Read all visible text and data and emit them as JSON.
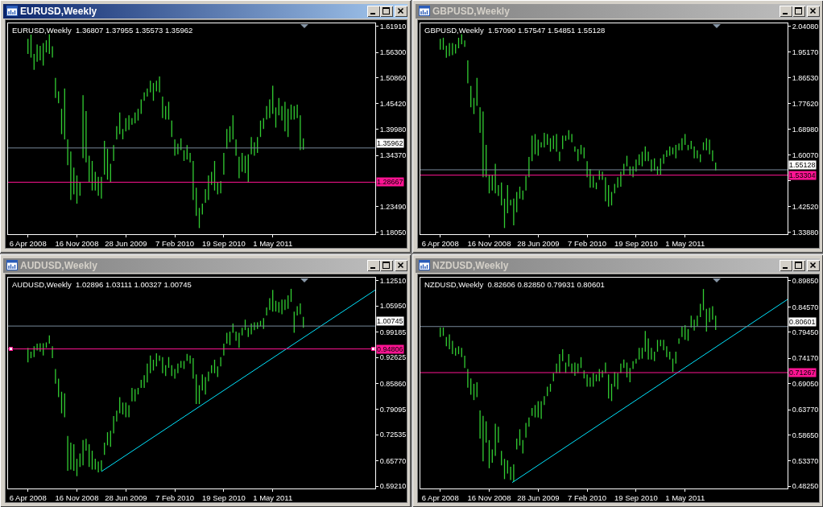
{
  "chart_data": [
    {
      "type": "bar",
      "title": "EURUSD,Weekly",
      "annotations": [
        "EURUSD,Weekly  1.36807 1.37955 1.35573 1.35962"
      ],
      "x": [
        "2008-04-06",
        "2008-04-20",
        "2008-05-04",
        "2008-05-18",
        "2008-06-01",
        "2008-06-15",
        "2008-06-29",
        "2008-07-13",
        "2008-07-27",
        "2008-08-10",
        "2008-08-24",
        "2008-09-07",
        "2008-09-21",
        "2008-10-05",
        "2008-10-19",
        "2008-11-02",
        "2008-11-16",
        "2008-11-30",
        "2008-12-14",
        "2008-12-28",
        "2009-01-11",
        "2009-01-25",
        "2009-02-08",
        "2009-02-22",
        "2009-03-08",
        "2009-03-22",
        "2009-04-05",
        "2009-04-19",
        "2009-05-03",
        "2009-05-17",
        "2009-05-31",
        "2009-06-14",
        "2009-06-28",
        "2009-07-12",
        "2009-07-26",
        "2009-08-09",
        "2009-08-23",
        "2009-09-06",
        "2009-09-20",
        "2009-10-04",
        "2009-10-18",
        "2009-11-01",
        "2009-11-15",
        "2009-11-29",
        "2009-12-13",
        "2009-12-27",
        "2010-01-10",
        "2010-01-24",
        "2010-02-07",
        "2010-02-21",
        "2010-03-07",
        "2010-03-21",
        "2010-04-04",
        "2010-04-18",
        "2010-05-02",
        "2010-05-16",
        "2010-05-30",
        "2010-06-13",
        "2010-06-27",
        "2010-07-11",
        "2010-07-25",
        "2010-08-08",
        "2010-08-22",
        "2010-09-05",
        "2010-09-19",
        "2010-10-03",
        "2010-10-17",
        "2010-10-31",
        "2010-11-14",
        "2010-11-28",
        "2010-12-12",
        "2010-12-26",
        "2011-01-09",
        "2011-01-23",
        "2011-02-06",
        "2011-02-20",
        "2011-03-06",
        "2011-03-20",
        "2011-04-03",
        "2011-04-17",
        "2011-05-01",
        "2011-05-15",
        "2011-05-29",
        "2011-06-12",
        "2011-06-26",
        "2011-07-10",
        "2011-07-24",
        "2011-08-07",
        "2011-08-21",
        "2011-09-04",
        "2011-09-18"
      ],
      "series": [
        {
          "color": "#32cd32",
          "base": [
            1.56,
            1.552,
            1.526,
            1.543,
            1.546,
            1.535,
            1.563,
            1.56,
            1.552,
            1.466,
            1.455,
            1.389,
            1.378,
            1.323,
            1.249,
            1.261,
            1.241,
            1.258,
            1.338,
            1.329,
            1.286,
            1.269,
            1.269,
            1.258,
            1.252,
            1.303,
            1.292,
            1.286,
            1.332,
            1.378,
            1.389,
            1.378,
            1.395,
            1.398,
            1.409,
            1.412,
            1.418,
            1.432,
            1.46,
            1.469,
            1.478,
            1.46,
            1.48,
            1.478,
            1.423,
            1.42,
            1.42,
            1.383,
            1.343,
            1.346,
            1.355,
            1.332,
            1.335,
            1.329,
            1.249,
            1.215,
            1.189,
            1.218,
            1.243,
            1.249,
            1.281,
            1.269,
            1.261,
            1.263,
            1.303,
            1.358,
            1.372,
            1.378,
            1.343,
            1.295,
            1.309,
            1.306,
            1.286,
            1.346,
            1.343,
            1.349,
            1.383,
            1.4,
            1.42,
            1.423,
            1.432,
            1.403,
            1.429,
            1.418,
            1.395,
            1.383,
            1.42,
            1.42,
            1.423,
            1.355,
            1.356
          ],
          "values": [
            0.032,
            0.049,
            0.034,
            0.037,
            0.031,
            0.048,
            0.026,
            0.042,
            0.024,
            0.043,
            0.025,
            0.054,
            0.108,
            0.055,
            0.103,
            0.057,
            0.06,
            0.028,
            0.134,
            0.109,
            0.057,
            0.063,
            0.04,
            0.04,
            0.046,
            0.072,
            0.066,
            0.04,
            0.034,
            0.028,
            0.046,
            0.022,
            0.028,
            0.031,
            0.014,
            0.023,
            0.025,
            0.031,
            0.018,
            0.017,
            0.025,
            0.038,
            0.023,
            0.034,
            0.046,
            0.029,
            0.038,
            0.035,
            0.035,
            0.023,
            0.025,
            0.023,
            0.031,
            0.02,
            0.083,
            0.06,
            0.043,
            0.023,
            0.029,
            0.052,
            0.028,
            0.063,
            0.025,
            0.026,
            0.046,
            0.042,
            0.034,
            0.051,
            0.035,
            0.046,
            0.04,
            0.037,
            0.06,
            0.037,
            0.029,
            0.034,
            0.035,
            0.023,
            0.029,
            0.04,
            0.06,
            0.043,
            0.037,
            0.031,
            0.063,
            0.06,
            0.032,
            0.029,
            0.029,
            0.074,
            0.024
          ]
        }
      ],
      "xlim": [
        "2008-01-06",
        "2012-08-12"
      ],
      "xticks": [
        {
          "value": "2008-04-06",
          "label": "6 Apr 2008"
        },
        {
          "value": "2008-11-16",
          "label": "16 Nov 2008"
        },
        {
          "value": "2009-06-28",
          "label": "28 Jun 2009"
        },
        {
          "value": "2010-02-07",
          "label": "7 Feb 2010"
        },
        {
          "value": "2010-09-19",
          "label": "19 Sep 2010"
        },
        {
          "value": "2011-05-01",
          "label": "1 May 2011"
        }
      ],
      "ylim": [
        1.176,
        1.625
      ],
      "yticks": [
        {
          "value": 1.6191,
          "label": "1.61910"
        },
        {
          "value": 1.563,
          "label": "1.56300"
        },
        {
          "value": 1.5086,
          "label": "1.50860"
        },
        {
          "value": 1.4542,
          "label": "1.45420"
        },
        {
          "value": 1.3998,
          "label": "1.39980"
        },
        {
          "value": 1.3437,
          "label": "1.34370"
        },
        {
          "value": 1.2349,
          "label": "1.23490"
        },
        {
          "value": 1.1805,
          "label": "1.18050"
        }
      ],
      "ref_lines": [
        {
          "axis": "y",
          "value": 1.35962,
          "label": "1.35962",
          "color": "#778899"
        },
        {
          "axis": "y",
          "value": 1.28667,
          "label": "1.28667",
          "color": "#ff1493"
        }
      ]
    },
    {
      "type": "bar",
      "title": "GBPUSD,Weekly",
      "annotations": [
        "GBPUSD,Weekly  1.57090 1.57547 1.54851 1.55128"
      ],
      "x": [
        "2008-04-06",
        "2008-04-20",
        "2008-05-04",
        "2008-05-18",
        "2008-06-01",
        "2008-06-15",
        "2008-06-29",
        "2008-07-13",
        "2008-07-27",
        "2008-08-10",
        "2008-08-24",
        "2008-09-07",
        "2008-09-21",
        "2008-10-05",
        "2008-10-19",
        "2008-11-02",
        "2008-11-16",
        "2008-11-30",
        "2008-12-14",
        "2008-12-28",
        "2009-01-11",
        "2009-01-25",
        "2009-02-08",
        "2009-02-22",
        "2009-03-08",
        "2009-03-22",
        "2009-04-05",
        "2009-04-19",
        "2009-05-03",
        "2009-05-17",
        "2009-05-31",
        "2009-06-14",
        "2009-06-28",
        "2009-07-12",
        "2009-07-26",
        "2009-08-09",
        "2009-08-23",
        "2009-09-06",
        "2009-09-20",
        "2009-10-04",
        "2009-10-18",
        "2009-11-01",
        "2009-11-15",
        "2009-11-29",
        "2009-12-13",
        "2009-12-27",
        "2010-01-10",
        "2010-01-24",
        "2010-02-07",
        "2010-02-21",
        "2010-03-07",
        "2010-03-21",
        "2010-04-04",
        "2010-04-18",
        "2010-05-02",
        "2010-05-16",
        "2010-05-30",
        "2010-06-13",
        "2010-06-27",
        "2010-07-11",
        "2010-07-25",
        "2010-08-08",
        "2010-08-22",
        "2010-09-05",
        "2010-09-19",
        "2010-10-03",
        "2010-10-17",
        "2010-10-31",
        "2010-11-14",
        "2010-11-28",
        "2010-12-12",
        "2010-12-26",
        "2011-01-09",
        "2011-01-23",
        "2011-02-06",
        "2011-02-20",
        "2011-03-06",
        "2011-03-20",
        "2011-04-03",
        "2011-04-17",
        "2011-05-01",
        "2011-05-15",
        "2011-05-29",
        "2011-06-12",
        "2011-06-26",
        "2011-07-10",
        "2011-07-24",
        "2011-08-07",
        "2011-08-21",
        "2011-09-04",
        "2011-09-18"
      ],
      "series": [
        {
          "color": "#32cd32",
          "base": [
            1.96,
            1.96,
            1.933,
            1.938,
            1.942,
            1.947,
            1.965,
            1.979,
            1.97,
            1.846,
            1.764,
            1.741,
            1.769,
            1.677,
            1.526,
            1.526,
            1.471,
            1.481,
            1.471,
            1.462,
            1.43,
            1.353,
            1.403,
            1.43,
            1.362,
            1.407,
            1.453,
            1.449,
            1.481,
            1.526,
            1.581,
            1.604,
            1.599,
            1.627,
            1.627,
            1.636,
            1.613,
            1.622,
            1.613,
            1.581,
            1.622,
            1.65,
            1.654,
            1.645,
            1.613,
            1.581,
            1.604,
            1.59,
            1.526,
            1.49,
            1.49,
            1.485,
            1.517,
            1.517,
            1.444,
            1.426,
            1.43,
            1.471,
            1.49,
            1.494,
            1.535,
            1.563,
            1.535,
            1.526,
            1.545,
            1.567,
            1.563,
            1.581,
            1.581,
            1.545,
            1.549,
            1.535,
            1.535,
            1.572,
            1.595,
            1.599,
            1.604,
            1.59,
            1.618,
            1.618,
            1.636,
            1.618,
            1.622,
            1.59,
            1.59,
            1.577,
            1.618,
            1.618,
            1.604,
            1.581,
            1.549
          ],
          "values": [
            0.037,
            0.041,
            0.041,
            0.045,
            0.041,
            0.032,
            0.036,
            0.034,
            0.022,
            0.078,
            0.073,
            0.055,
            0.095,
            0.087,
            0.224,
            0.11,
            0.064,
            0.054,
            0.101,
            0.037,
            0.078,
            0.1,
            0.096,
            0.019,
            0.091,
            0.069,
            0.041,
            0.032,
            0.05,
            0.069,
            0.087,
            0.069,
            0.055,
            0.018,
            0.05,
            0.037,
            0.046,
            0.046,
            0.06,
            0.032,
            0.046,
            0.018,
            0.032,
            0.028,
            0.018,
            0.041,
            0.032,
            0.037,
            0.055,
            0.064,
            0.041,
            0.023,
            0.032,
            0.028,
            0.082,
            0.073,
            0.046,
            0.032,
            0.036,
            0.051,
            0.037,
            0.036,
            0.028,
            0.037,
            0.041,
            0.037,
            0.05,
            0.05,
            0.032,
            0.041,
            0.041,
            0.028,
            0.055,
            0.032,
            0.023,
            0.032,
            0.023,
            0.046,
            0.023,
            0.041,
            0.037,
            0.018,
            0.028,
            0.041,
            0.028,
            0.027,
            0.027,
            0.041,
            0.05,
            0.037,
            0.027
          ]
        }
      ],
      "xlim": [
        "2008-01-06",
        "2012-08-12"
      ],
      "xticks": [
        {
          "value": "2008-04-06",
          "label": "6 Apr 2008"
        },
        {
          "value": "2008-11-16",
          "label": "16 Nov 2008"
        },
        {
          "value": "2009-06-28",
          "label": "28 Jun 2009"
        },
        {
          "value": "2010-02-07",
          "label": "7 Feb 2010"
        },
        {
          "value": "2010-09-19",
          "label": "19 Sep 2010"
        },
        {
          "value": "2011-05-01",
          "label": "1 May 2011"
        }
      ],
      "ylim": [
        1.332,
        2.05
      ],
      "yticks": [
        {
          "value": 2.0408,
          "label": "2.04080"
        },
        {
          "value": 1.9517,
          "label": "1.95170"
        },
        {
          "value": 1.8653,
          "label": "1.86530"
        },
        {
          "value": 1.7762,
          "label": "1.77620"
        },
        {
          "value": 1.6898,
          "label": "1.68980"
        },
        {
          "value": 1.6007,
          "label": "1.60070"
        },
        {
          "value": 1.5143,
          "label": null
        },
        {
          "value": 1.4252,
          "label": "1.42520"
        },
        {
          "value": 1.3388,
          "label": "1.33880"
        }
      ],
      "ref_lines": [
        {
          "axis": "y",
          "value": 1.55128,
          "label": "1.55128",
          "color": "#778899"
        },
        {
          "axis": "y",
          "value": 1.53304,
          "label": "1.53304",
          "color": "#ff1493"
        }
      ]
    },
    {
      "type": "bar",
      "title": "AUDUSD,Weekly",
      "annotations": [
        "AUDUSD,Weekly  1.02896 1.03111 1.00327 1.00745"
      ],
      "x": [
        "2008-04-06",
        "2008-04-20",
        "2008-05-04",
        "2008-05-18",
        "2008-06-01",
        "2008-06-15",
        "2008-06-29",
        "2008-07-13",
        "2008-07-27",
        "2008-08-10",
        "2008-08-24",
        "2008-09-07",
        "2008-09-21",
        "2008-10-05",
        "2008-10-19",
        "2008-11-02",
        "2008-11-16",
        "2008-11-30",
        "2008-12-14",
        "2008-12-28",
        "2009-01-11",
        "2009-01-25",
        "2009-02-08",
        "2009-02-22",
        "2009-03-08",
        "2009-03-22",
        "2009-04-05",
        "2009-04-19",
        "2009-05-03",
        "2009-05-17",
        "2009-05-31",
        "2009-06-14",
        "2009-06-28",
        "2009-07-12",
        "2009-07-26",
        "2009-08-09",
        "2009-08-23",
        "2009-09-06",
        "2009-09-20",
        "2009-10-04",
        "2009-10-18",
        "2009-11-01",
        "2009-11-15",
        "2009-11-29",
        "2009-12-13",
        "2009-12-27",
        "2010-01-10",
        "2010-01-24",
        "2010-02-07",
        "2010-02-21",
        "2010-03-07",
        "2010-03-21",
        "2010-04-04",
        "2010-04-18",
        "2010-05-02",
        "2010-05-16",
        "2010-05-30",
        "2010-06-13",
        "2010-06-27",
        "2010-07-11",
        "2010-07-25",
        "2010-08-08",
        "2010-08-22",
        "2010-09-05",
        "2010-09-19",
        "2010-10-03",
        "2010-10-17",
        "2010-10-31",
        "2010-11-14",
        "2010-11-28",
        "2010-12-12",
        "2010-12-26",
        "2011-01-09",
        "2011-01-23",
        "2011-02-06",
        "2011-02-20",
        "2011-03-06",
        "2011-03-20",
        "2011-04-03",
        "2011-04-17",
        "2011-05-01",
        "2011-05-15",
        "2011-05-29",
        "2011-06-12",
        "2011-06-26",
        "2011-07-10",
        "2011-07-24",
        "2011-08-07",
        "2011-08-21",
        "2011-09-04",
        "2011-09-18"
      ],
      "series": [
        {
          "color": "#32cd32",
          "base": [
            0.913,
            0.924,
            0.927,
            0.944,
            0.941,
            0.931,
            0.951,
            0.962,
            0.924,
            0.858,
            0.823,
            0.781,
            0.771,
            0.632,
            0.635,
            0.632,
            0.618,
            0.642,
            0.646,
            0.684,
            0.642,
            0.635,
            0.635,
            0.628,
            0.632,
            0.673,
            0.698,
            0.694,
            0.729,
            0.76,
            0.781,
            0.778,
            0.771,
            0.771,
            0.812,
            0.812,
            0.83,
            0.847,
            0.847,
            0.861,
            0.885,
            0.892,
            0.903,
            0.917,
            0.885,
            0.878,
            0.899,
            0.878,
            0.871,
            0.885,
            0.899,
            0.896,
            0.917,
            0.91,
            0.871,
            0.805,
            0.805,
            0.84,
            0.83,
            0.864,
            0.885,
            0.885,
            0.875,
            0.903,
            0.931,
            0.962,
            0.958,
            0.99,
            0.969,
            0.951,
            0.983,
            0.997,
            0.979,
            0.986,
            0.997,
            1.0,
            1.007,
            1.0,
            1.035,
            1.049,
            1.045,
            1.045,
            1.042,
            1.038,
            1.049,
            1.052,
            1.07,
            0.99,
            1.035,
            1.038,
            1.003
          ],
          "values": [
            0.038,
            0.017,
            0.028,
            0.018,
            0.022,
            0.032,
            0.014,
            0.021,
            0.031,
            0.038,
            0.048,
            0.056,
            0.062,
            0.09,
            0.07,
            0.069,
            0.045,
            0.035,
            0.066,
            0.031,
            0.059,
            0.049,
            0.028,
            0.028,
            0.027,
            0.032,
            0.034,
            0.042,
            0.045,
            0.028,
            0.042,
            0.031,
            0.038,
            0.031,
            0.035,
            0.032,
            0.017,
            0.021,
            0.033,
            0.049,
            0.046,
            0.028,
            0.034,
            0.014,
            0.042,
            0.028,
            0.028,
            0.028,
            0.025,
            0.025,
            0.018,
            0.021,
            0.018,
            0.021,
            0.053,
            0.077,
            0.049,
            0.042,
            0.045,
            0.025,
            0.021,
            0.035,
            0.028,
            0.024,
            0.031,
            0.028,
            0.035,
            0.024,
            0.024,
            0.039,
            0.02,
            0.027,
            0.024,
            0.028,
            0.02,
            0.017,
            0.014,
            0.028,
            0.021,
            0.031,
            0.056,
            0.028,
            0.028,
            0.038,
            0.027,
            0.035,
            0.034,
            0.055,
            0.024,
            0.028,
            0.028
          ]
        },
        {
          "type": "line",
          "color": "#00e5ff",
          "x": [
            "2009-03-08",
            "2012-08-12"
          ],
          "values": [
            0.63,
            1.101
          ]
        }
      ],
      "xlim": [
        "2008-01-06",
        "2012-08-12"
      ],
      "xticks": [
        {
          "value": "2008-04-06",
          "label": "6 Apr 2008"
        },
        {
          "value": "2008-11-16",
          "label": "16 Nov 2008"
        },
        {
          "value": "2009-06-28",
          "label": "28 Jun 2009"
        },
        {
          "value": "2010-02-07",
          "label": "7 Feb 2010"
        },
        {
          "value": "2010-09-19",
          "label": "19 Sep 2010"
        },
        {
          "value": "2011-05-01",
          "label": "1 May 2011"
        }
      ],
      "ylim": [
        0.586,
        1.133
      ],
      "yticks": [
        {
          "value": 1.1251,
          "label": "1.12510"
        },
        {
          "value": 1.0595,
          "label": "1.05950"
        },
        {
          "value": 0.99185,
          "label": "0.99185"
        },
        {
          "value": 0.92625,
          "label": "0.92625"
        },
        {
          "value": 0.8586,
          "label": "0.85860"
        },
        {
          "value": 0.79095,
          "label": "0.79095"
        },
        {
          "value": 0.72535,
          "label": "0.72535"
        },
        {
          "value": 0.6577,
          "label": "0.65770"
        },
        {
          "value": 0.5921,
          "label": "0.59210"
        }
      ],
      "ref_lines": [
        {
          "axis": "y",
          "value": 1.00745,
          "label": "1.00745",
          "color": "#778899"
        },
        {
          "axis": "y",
          "value": 0.94806,
          "label": "0.94806",
          "color": "#ff1493"
        }
      ]
    },
    {
      "type": "bar",
      "title": "NZDUSD,Weekly",
      "annotations": [
        "NZDUSD,Weekly  0.82606 0.82850 0.79931 0.80601"
      ],
      "x": [
        "2008-04-06",
        "2008-04-20",
        "2008-05-04",
        "2008-05-18",
        "2008-06-01",
        "2008-06-15",
        "2008-06-29",
        "2008-07-13",
        "2008-07-27",
        "2008-08-10",
        "2008-08-24",
        "2008-09-07",
        "2008-09-21",
        "2008-10-05",
        "2008-10-19",
        "2008-11-02",
        "2008-11-16",
        "2008-11-30",
        "2008-12-14",
        "2008-12-28",
        "2009-01-11",
        "2009-01-25",
        "2009-02-08",
        "2009-02-22",
        "2009-03-08",
        "2009-03-22",
        "2009-04-05",
        "2009-04-19",
        "2009-05-03",
        "2009-05-17",
        "2009-05-31",
        "2009-06-14",
        "2009-06-28",
        "2009-07-12",
        "2009-07-26",
        "2009-08-09",
        "2009-08-23",
        "2009-09-06",
        "2009-09-20",
        "2009-10-04",
        "2009-10-18",
        "2009-11-01",
        "2009-11-15",
        "2009-11-29",
        "2009-12-13",
        "2009-12-27",
        "2010-01-10",
        "2010-01-24",
        "2010-02-07",
        "2010-02-21",
        "2010-03-07",
        "2010-03-21",
        "2010-04-04",
        "2010-04-18",
        "2010-05-02",
        "2010-05-16",
        "2010-05-30",
        "2010-06-13",
        "2010-06-27",
        "2010-07-11",
        "2010-07-25",
        "2010-08-08",
        "2010-08-22",
        "2010-09-05",
        "2010-09-19",
        "2010-10-03",
        "2010-10-17",
        "2010-10-31",
        "2010-11-14",
        "2010-11-28",
        "2010-12-12",
        "2010-12-26",
        "2011-01-09",
        "2011-01-23",
        "2011-02-06",
        "2011-02-20",
        "2011-03-06",
        "2011-03-20",
        "2011-04-03",
        "2011-04-17",
        "2011-05-01",
        "2011-05-15",
        "2011-05-29",
        "2011-06-12",
        "2011-06-26",
        "2011-07-10",
        "2011-07-24",
        "2011-08-07",
        "2011-08-21",
        "2011-09-04",
        "2011-09-18"
      ],
      "series": [
        {
          "color": "#32cd32",
          "base": [
            0.785,
            0.787,
            0.766,
            0.76,
            0.75,
            0.747,
            0.75,
            0.744,
            0.722,
            0.682,
            0.668,
            0.657,
            0.663,
            0.579,
            0.533,
            0.571,
            0.519,
            0.53,
            0.544,
            0.571,
            0.525,
            0.497,
            0.508,
            0.495,
            0.492,
            0.557,
            0.565,
            0.549,
            0.581,
            0.603,
            0.625,
            0.622,
            0.622,
            0.619,
            0.647,
            0.665,
            0.674,
            0.695,
            0.712,
            0.712,
            0.736,
            0.712,
            0.725,
            0.712,
            0.706,
            0.712,
            0.722,
            0.701,
            0.684,
            0.684,
            0.684,
            0.695,
            0.695,
            0.703,
            0.712,
            0.66,
            0.655,
            0.684,
            0.679,
            0.712,
            0.722,
            0.703,
            0.693,
            0.72,
            0.731,
            0.739,
            0.741,
            0.755,
            0.739,
            0.739,
            0.736,
            0.755,
            0.766,
            0.758,
            0.744,
            0.739,
            0.714,
            0.731,
            0.771,
            0.785,
            0.779,
            0.777,
            0.804,
            0.798,
            0.806,
            0.825,
            0.839,
            0.796,
            0.815,
            0.82,
            0.799
          ],
          "values": [
            0.019,
            0.017,
            0.019,
            0.03,
            0.027,
            0.016,
            0.016,
            0.019,
            0.025,
            0.038,
            0.033,
            0.033,
            0.03,
            0.057,
            0.092,
            0.043,
            0.057,
            0.027,
            0.065,
            0.032,
            0.029,
            0.041,
            0.027,
            0.027,
            0.035,
            0.022,
            0.033,
            0.027,
            0.03,
            0.019,
            0.016,
            0.025,
            0.033,
            0.036,
            0.018,
            0.019,
            0.016,
            0.017,
            0.019,
            0.038,
            0.024,
            0.021,
            0.025,
            0.019,
            0.027,
            0.019,
            0.022,
            0.016,
            0.025,
            0.019,
            0.028,
            0.014,
            0.025,
            0.014,
            0.021,
            0.049,
            0.035,
            0.03,
            0.033,
            0.019,
            0.017,
            0.03,
            0.029,
            0.016,
            0.01,
            0.024,
            0.022,
            0.042,
            0.043,
            0.024,
            0.019,
            0.024,
            0.013,
            0.021,
            0.022,
            0.016,
            0.027,
            0.024,
            0.011,
            0.021,
            0.03,
            0.024,
            0.024,
            0.022,
            0.022,
            0.027,
            0.043,
            0.046,
            0.029,
            0.027,
            0.029
          ]
        },
        {
          "type": "line",
          "color": "#00e5ff",
          "x": [
            "2009-03-01",
            "2012-08-12"
          ],
          "values": [
            0.49,
            0.861
          ]
        }
      ],
      "xlim": [
        "2008-01-06",
        "2012-08-12"
      ],
      "xticks": [
        {
          "value": "2008-04-06",
          "label": "6 Apr 2008"
        },
        {
          "value": "2008-11-16",
          "label": "16 Nov 2008"
        },
        {
          "value": "2009-06-28",
          "label": "28 Jun 2009"
        },
        {
          "value": "2010-02-07",
          "label": "7 Feb 2010"
        },
        {
          "value": "2010-09-19",
          "label": "19 Sep 2010"
        },
        {
          "value": "2011-05-01",
          "label": "1 May 2011"
        }
      ],
      "ylim": [
        0.478,
        0.905
      ],
      "yticks": [
        {
          "value": 0.8985,
          "label": "0.89850"
        },
        {
          "value": 0.8457,
          "label": "0.84570"
        },
        {
          "value": 0.7945,
          "label": "0.79450"
        },
        {
          "value": 0.7417,
          "label": "0.74170"
        },
        {
          "value": 0.6905,
          "label": "0.69050"
        },
        {
          "value": 0.6377,
          "label": "0.63770"
        },
        {
          "value": 0.5865,
          "label": "0.58650"
        },
        {
          "value": 0.5337,
          "label": "0.53370"
        },
        {
          "value": 0.4825,
          "label": "0.48250"
        }
      ],
      "ref_lines": [
        {
          "axis": "y",
          "value": 0.80601,
          "label": "0.80601",
          "color": "#778899"
        },
        {
          "axis": "y",
          "value": 0.71267,
          "label": "0.71267",
          "color": "#ff1493"
        }
      ]
    }
  ]
}
